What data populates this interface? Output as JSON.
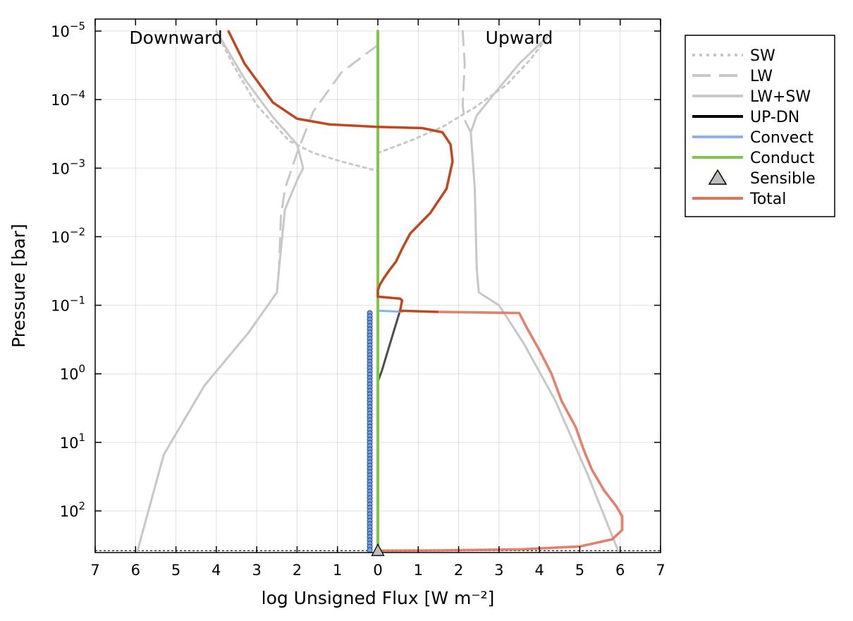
{
  "chart_data": {
    "type": "line",
    "title": "",
    "xlabel": "log Unsigned Flux [W m⁻²]",
    "ylabel": "Pressure [bar]",
    "x_axis": {
      "range": [
        -7,
        7
      ],
      "ticks": [
        -7,
        -6,
        -5,
        -4,
        -3,
        -2,
        -1,
        0,
        1,
        2,
        3,
        4,
        5,
        6,
        7
      ],
      "tick_labels": [
        "7",
        "6",
        "5",
        "4",
        "3",
        "2",
        "1",
        "0",
        "1",
        "2",
        "3",
        "4",
        "5",
        "6",
        "7"
      ]
    },
    "y_axis": {
      "scale": "log",
      "reversed": true,
      "range": [
        1e-05,
        430
      ],
      "ticks": [
        1e-05,
        0.0001,
        0.001,
        0.01,
        0.1,
        1,
        10,
        100
      ],
      "tick_labels": [
        {
          "base": "10",
          "exp": "−5"
        },
        {
          "base": "10",
          "exp": "−4"
        },
        {
          "base": "10",
          "exp": "−3"
        },
        {
          "base": "10",
          "exp": "−2"
        },
        {
          "base": "10",
          "exp": "−1"
        },
        {
          "base": "10",
          "exp": "0"
        },
        {
          "base": "10",
          "exp": "1"
        },
        {
          "base": "10",
          "exp": "2"
        }
      ]
    },
    "grid": true,
    "legend": "outside-top-right",
    "annotations": [
      {
        "text": "Downward",
        "x": -5,
        "p": 1.5e-05
      },
      {
        "text": "Upward",
        "x": 3.5,
        "p": 1.5e-05
      }
    ],
    "surface_pressure": 380,
    "series": [
      {
        "name": "SW",
        "style": "dotted",
        "color": "#c8c8c8",
        "points": [
          [
            -4.0,
            1e-05
          ],
          [
            -3.6,
            3e-05
          ],
          [
            -3.0,
            0.00012
          ],
          [
            -2.2,
            0.0004
          ],
          [
            -1.6,
            0.0006
          ],
          [
            -0.9,
            0.0008
          ],
          [
            0,
            0.0011
          ]
        ]
      },
      {
        "name": "SW",
        "style": "dotted",
        "color": "#c8c8c8",
        "points": [
          [
            0,
            0.0006
          ],
          [
            0.8,
            0.0004
          ],
          [
            1.6,
            0.00025
          ],
          [
            2.4,
            0.00013
          ],
          [
            3.2,
            6e-05
          ],
          [
            3.8,
            2.5e-05
          ],
          [
            4.2,
            1.2e-05
          ]
        ]
      },
      {
        "name": "LW",
        "style": "dashed",
        "color": "#c8c8c8",
        "points": [
          [
            0,
            1.6e-05
          ],
          [
            -0.9,
            4e-05
          ],
          [
            -1.6,
            0.00015
          ],
          [
            -2.0,
            0.0006
          ],
          [
            -2.3,
            0.002
          ],
          [
            -2.4,
            0.005
          ],
          [
            -2.45,
            0.03
          ],
          [
            -2.5,
            0.065
          ],
          [
            -3.2,
            0.25
          ],
          [
            -4.3,
            1.5
          ],
          [
            -5.3,
            15
          ],
          [
            -5.95,
            380
          ]
        ]
      },
      {
        "name": "LW",
        "style": "dashed",
        "color": "#c8c8c8",
        "points": [
          [
            2.1,
            1e-05
          ],
          [
            2.15,
            3e-05
          ],
          [
            2.1,
            0.00012
          ],
          [
            2.15,
            0.0002
          ],
          [
            2.3,
            0.0003
          ],
          [
            2.4,
            0.002
          ],
          [
            2.45,
            0.03
          ],
          [
            2.5,
            0.065
          ],
          [
            3.0,
            0.1
          ],
          [
            3.6,
            0.35
          ],
          [
            4.4,
            2.5
          ],
          [
            5.2,
            30
          ],
          [
            5.95,
            380
          ]
        ]
      },
      {
        "name": "LW+SW",
        "style": "solid",
        "color": "#c8c8c8",
        "points": [
          [
            -4.0,
            1e-05
          ],
          [
            -3.3,
            5e-05
          ],
          [
            -2.6,
            0.00018
          ],
          [
            -2.0,
            0.00045
          ],
          [
            -1.85,
            0.001
          ],
          [
            -2.0,
            0.0015
          ],
          [
            -2.3,
            0.004
          ],
          [
            -2.45,
            0.03
          ],
          [
            -2.5,
            0.065
          ],
          [
            -3.2,
            0.25
          ],
          [
            -4.3,
            1.5
          ],
          [
            -5.3,
            15
          ],
          [
            -5.95,
            380
          ]
        ]
      },
      {
        "name": "LW+SW",
        "style": "solid",
        "color": "#c8c8c8",
        "points": [
          [
            4.2,
            1.2e-05
          ],
          [
            3.5,
            3e-05
          ],
          [
            2.9,
            8e-05
          ],
          [
            2.45,
            0.00017
          ],
          [
            2.3,
            0.0003
          ],
          [
            2.4,
            0.002
          ],
          [
            2.45,
            0.03
          ],
          [
            2.5,
            0.065
          ],
          [
            3.0,
            0.1
          ],
          [
            3.6,
            0.35
          ],
          [
            4.4,
            2.5
          ],
          [
            5.2,
            30
          ],
          [
            5.95,
            380
          ]
        ]
      },
      {
        "name": "UP-DN",
        "style": "solid",
        "color": "#000000",
        "points": [
          [
            0,
            1.3
          ],
          [
            0.1,
            0.9
          ],
          [
            0.28,
            0.4
          ],
          [
            0.5,
            0.15
          ],
          [
            0.55,
            0.12
          ]
        ]
      },
      {
        "name": "Convect",
        "style": "solid",
        "color": "#8fb1e8",
        "points": [
          [
            0,
            0.12
          ],
          [
            0.3,
            0.122
          ],
          [
            0.55,
            0.124
          ],
          [
            0.6,
            0.125
          ]
        ]
      },
      {
        "name": "Conduct",
        "style": "solid",
        "color": "#7dc94b",
        "points": [
          [
            0,
            1e-05
          ],
          [
            0,
            380
          ]
        ]
      },
      {
        "name": "Total",
        "style": "solid",
        "color": "#e0735c",
        "points": [
          [
            -3.7,
            1e-05
          ],
          [
            -3.3,
            3e-05
          ],
          [
            -2.6,
            0.00011
          ],
          [
            -2,
            0.00019
          ],
          [
            -1.2,
            0.00023
          ],
          [
            0,
            0.00025
          ],
          [
            1.1,
            0.00026
          ],
          [
            1.6,
            0.0003
          ],
          [
            1.8,
            0.00045
          ],
          [
            1.85,
            0.0008
          ],
          [
            1.7,
            0.002
          ],
          [
            1.3,
            0.0045
          ],
          [
            0.8,
            0.009
          ],
          [
            0.6,
            0.015
          ],
          [
            0.45,
            0.023
          ],
          [
            0.3,
            0.03
          ],
          [
            0.15,
            0.04
          ],
          [
            0.05,
            0.05
          ],
          [
            0,
            0.06
          ],
          [
            0,
            0.075
          ],
          [
            0.55,
            0.08
          ],
          [
            0.6,
            0.085
          ],
          [
            0.55,
            0.12
          ],
          [
            1.5,
            0.125
          ],
          [
            3.5,
            0.13
          ],
          [
            3.7,
            0.22
          ],
          [
            4.0,
            0.45
          ],
          [
            4.3,
            1.0
          ],
          [
            4.55,
            2.5
          ],
          [
            4.9,
            6
          ],
          [
            5.1,
            13
          ],
          [
            5.3,
            25
          ],
          [
            5.6,
            50
          ],
          [
            5.9,
            85
          ],
          [
            6.05,
            120
          ],
          [
            6.05,
            190
          ],
          [
            5.8,
            260
          ],
          [
            5.0,
            330
          ],
          [
            3.5,
            365
          ],
          [
            1.5,
            377
          ],
          [
            0.3,
            380
          ],
          [
            0,
            380
          ]
        ]
      },
      {
        "name": "Sensible",
        "style": "marker-triangle",
        "color": "#bdbdbd",
        "points": [
          [
            0,
            380
          ]
        ]
      }
    ],
    "convect_markers": {
      "x": -0.2,
      "p_top": 0.13,
      "p_bottom": 380,
      "color": "#6f9be8",
      "edge": "#1f3b70"
    },
    "legend_entries": [
      {
        "label": "SW",
        "style": "dotted",
        "color": "#c8c8c8"
      },
      {
        "label": "LW",
        "style": "dashed",
        "color": "#c8c8c8"
      },
      {
        "label": "LW+SW",
        "style": "solid",
        "color": "#c8c8c8"
      },
      {
        "label": "UP-DN",
        "style": "solid",
        "color": "#000000"
      },
      {
        "label": "Convect",
        "style": "solid",
        "color": "#8fb1e8"
      },
      {
        "label": "Conduct",
        "style": "solid",
        "color": "#7dc94b"
      },
      {
        "label": "Sensible",
        "style": "marker-triangle",
        "color": "#bdbdbd"
      },
      {
        "label": "Total",
        "style": "solid",
        "color": "#e0735c"
      }
    ]
  }
}
